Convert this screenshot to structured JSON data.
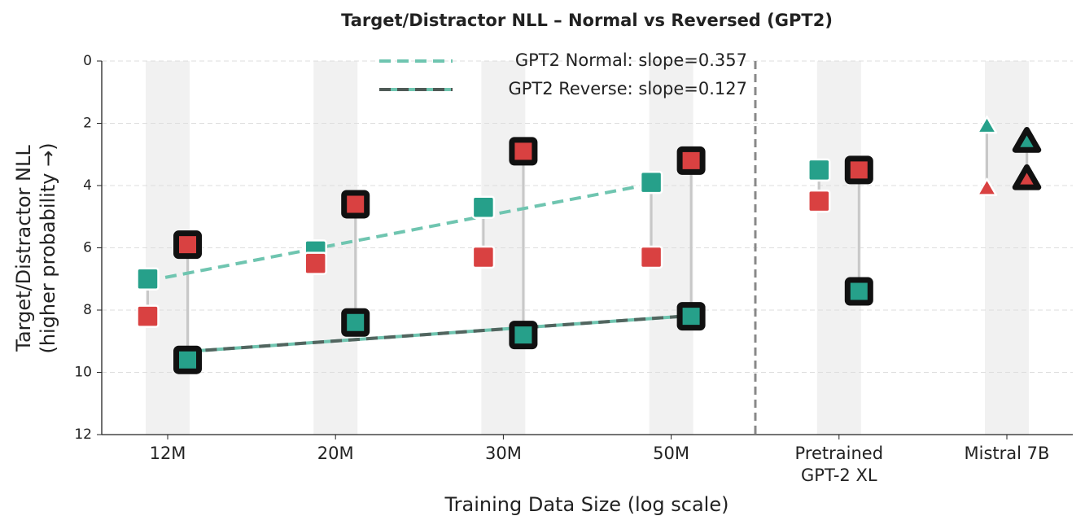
{
  "chart_data": {
    "type": "dumbbell",
    "title": "Target/Distractor NLL – Normal vs Reversed (GPT2)",
    "x_label": "Training Data Size (log scale)",
    "y_label": [
      "Target/Distractor NLL",
      "(higher probability →)"
    ],
    "categories": [
      "12M",
      "20M",
      "30M",
      "50M",
      "Pretrained\nGPT-2 XL",
      "Mistral 7B"
    ],
    "markers": [
      "square",
      "square",
      "square",
      "square",
      "square",
      "triangle"
    ],
    "ylim": [
      12,
      0
    ],
    "yticks": [
      0,
      2,
      4,
      6,
      8,
      10,
      12
    ],
    "grid": true,
    "legend": "upper center",
    "series": [
      {
        "color": "#26a08a",
        "reversed": false,
        "values": [
          7.0,
          6.1,
          4.7,
          3.9,
          3.5,
          2.1
        ]
      },
      {
        "color": "#d94141",
        "reversed": false,
        "values": [
          8.2,
          6.5,
          6.3,
          6.3,
          4.5,
          4.1
        ]
      },
      {
        "color": "#26a08a",
        "reversed": true,
        "values": [
          9.6,
          8.4,
          8.8,
          8.2,
          7.4,
          2.6
        ]
      },
      {
        "color": "#d94141",
        "reversed": true,
        "values": [
          5.9,
          4.6,
          2.9,
          3.2,
          3.5,
          3.8
        ]
      }
    ],
    "trend_lines": [
      {
        "name": "GPT2 Normal: slope=0.357",
        "color": "#6fc5b0",
        "reversed": false,
        "x": [
          0,
          3
        ],
        "values": [
          7.06,
          3.95
        ]
      },
      {
        "name": "GPT2 Reverse: slope=0.127",
        "color": "#4f5a56",
        "alt_color": "#6fc5b0",
        "reversed": true,
        "x": [
          0,
          3
        ],
        "values": [
          9.33,
          8.18
        ]
      }
    ]
  }
}
